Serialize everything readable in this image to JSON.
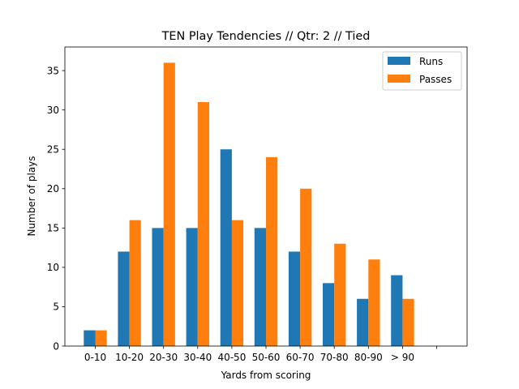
{
  "chart_data": {
    "type": "bar",
    "title": "TEN Play Tendencies // Qtr: 2 // Tied",
    "xlabel": "Yards from scoring",
    "ylabel": "Number of plays",
    "categories": [
      "0-10",
      "10-20",
      "20-30",
      "30-40",
      "40-50",
      "50-60",
      "60-70",
      "70-80",
      "80-90",
      "> 90",
      ""
    ],
    "series": [
      {
        "name": "Runs",
        "color": "#1f77b4",
        "values": [
          2,
          12,
          15,
          15,
          25,
          15,
          12,
          8,
          6,
          9,
          0
        ]
      },
      {
        "name": "Passes",
        "color": "#ff7f0e",
        "values": [
          2,
          16,
          36,
          31,
          16,
          24,
          20,
          13,
          11,
          6,
          0
        ]
      }
    ],
    "ylim": [
      0,
      38
    ],
    "yticks": [
      0,
      5,
      10,
      15,
      20,
      25,
      30,
      35
    ],
    "legend_position": "top-right",
    "grid": false
  }
}
